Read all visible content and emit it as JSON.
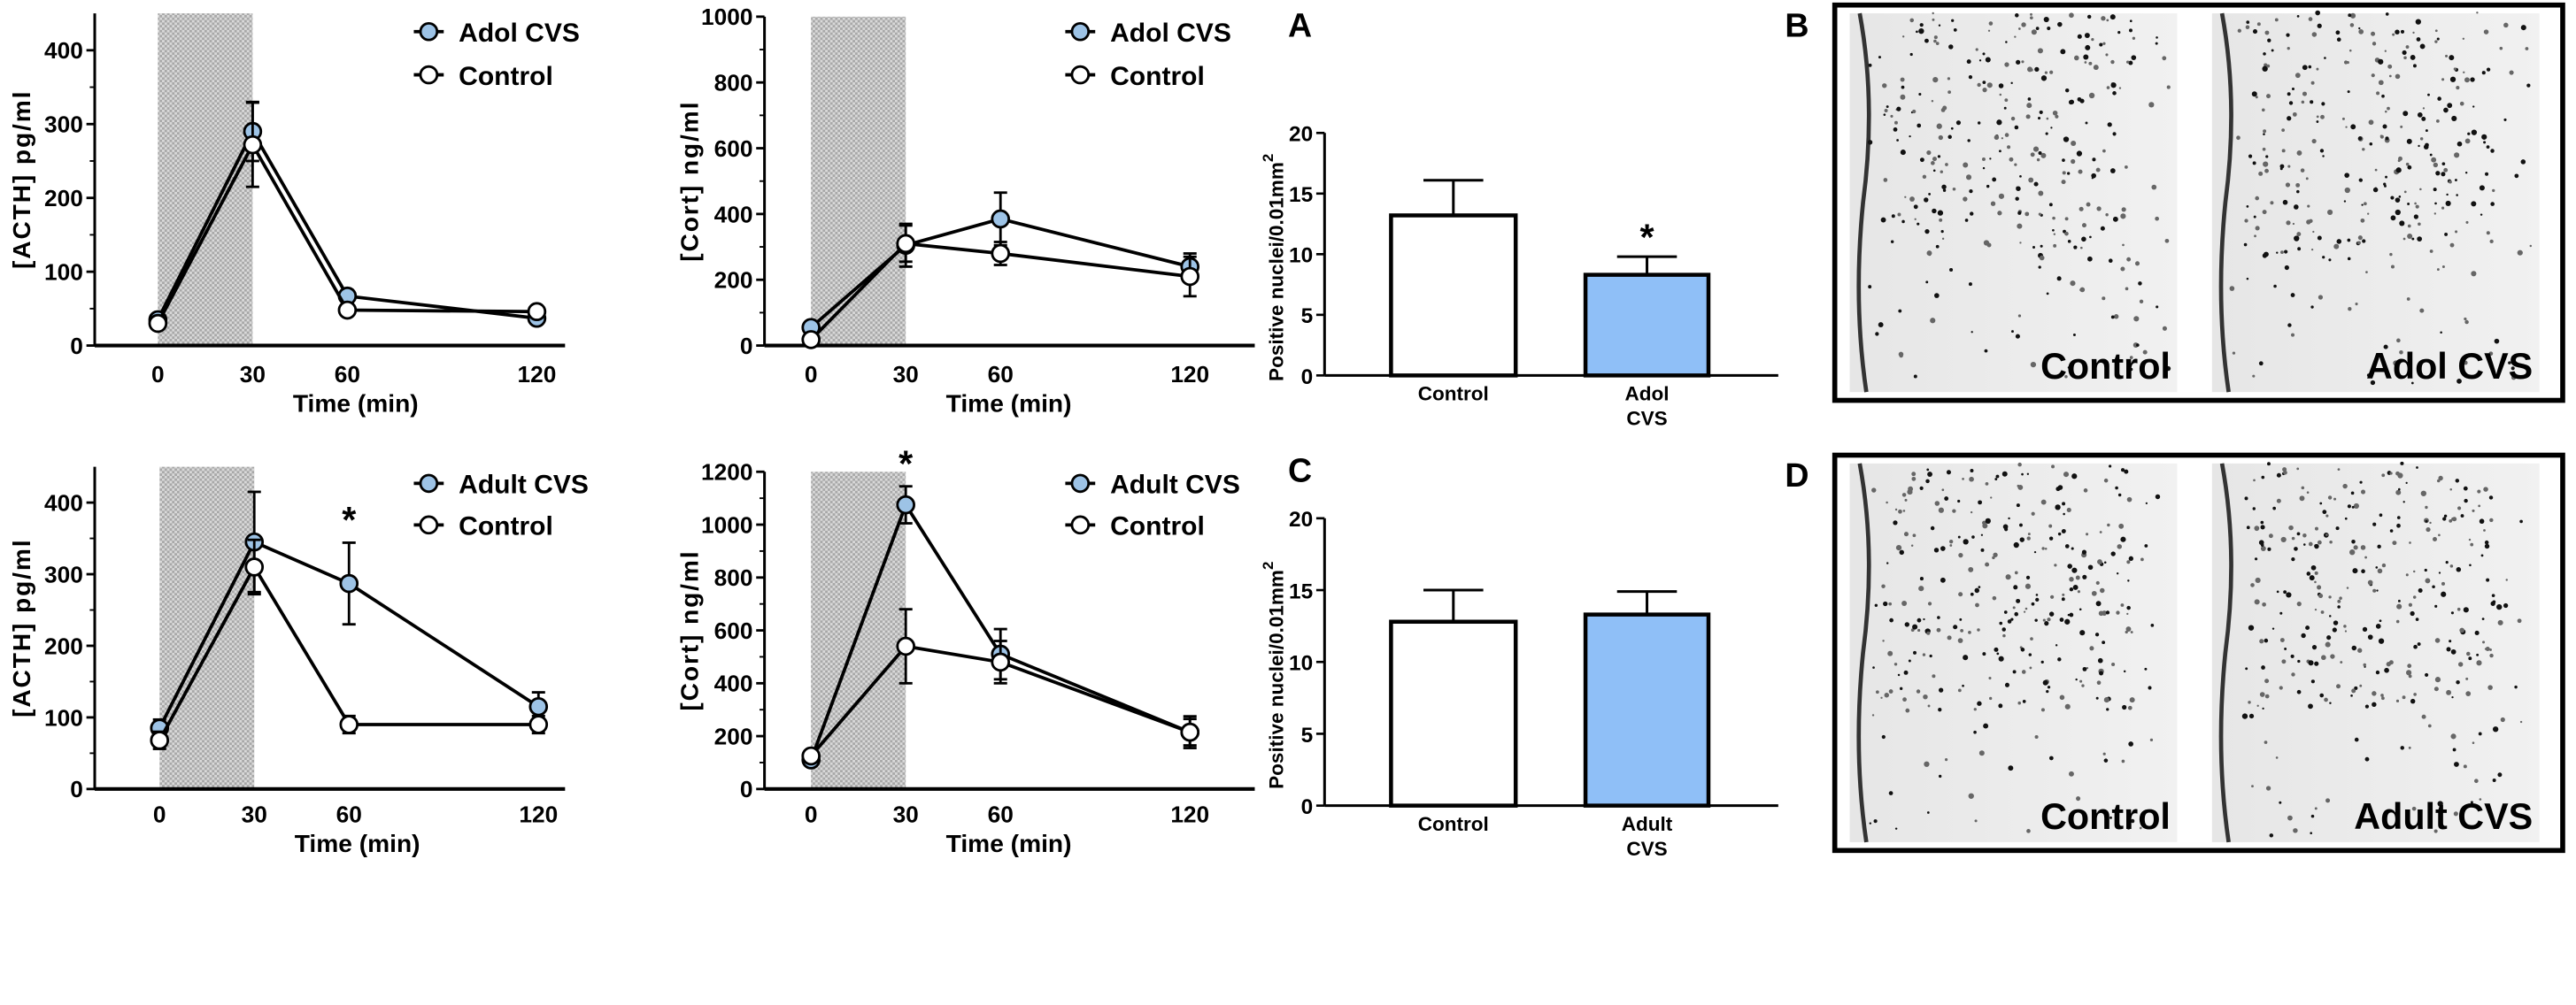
{
  "colors": {
    "cvs_marker": "#9dc3e6",
    "cvs_bar": "#8fbff7",
    "control": "#ffffff",
    "stress_shade": "#c4c4c4"
  },
  "chart_data": [
    {
      "type": "line",
      "id": "acth-adol",
      "xlabel": "Time (min)",
      "ylabel": "[ACTH] pg/ml",
      "ylim": [
        0,
        450
      ],
      "yticks": [
        0,
        100,
        200,
        300,
        400
      ],
      "x": [
        0,
        30,
        60,
        120
      ],
      "shaded_interval": [
        0,
        30
      ],
      "series": [
        {
          "name": "Adol CVS",
          "color": "#9dc3e6",
          "values": [
            35,
            290,
            67,
            37
          ],
          "err": [
            6,
            40,
            8,
            6
          ]
        },
        {
          "name": "Control",
          "color": "#ffffff",
          "values": [
            30,
            272,
            48,
            46
          ],
          "err": [
            5,
            57,
            6,
            6
          ]
        }
      ],
      "annotations": []
    },
    {
      "type": "line",
      "id": "cort-adol",
      "xlabel": "Time (min)",
      "ylabel": "[Cort] ng/ml",
      "ylim": [
        0,
        1000
      ],
      "yticks": [
        0,
        200,
        400,
        600,
        800,
        1000
      ],
      "x": [
        0,
        30,
        60,
        120
      ],
      "shaded_interval": [
        0,
        30
      ],
      "series": [
        {
          "name": "Adol CVS",
          "color": "#9dc3e6",
          "values": [
            55,
            305,
            385,
            240
          ],
          "err": [
            10,
            65,
            80,
            40
          ]
        },
        {
          "name": "Control",
          "color": "#ffffff",
          "values": [
            18,
            310,
            280,
            210
          ],
          "err": [
            5,
            55,
            35,
            60
          ]
        }
      ],
      "annotations": []
    },
    {
      "type": "line",
      "id": "acth-adult",
      "xlabel": "Time (min)",
      "ylabel": "[ACTH] pg/ml",
      "ylim": [
        0,
        450
      ],
      "yticks": [
        0,
        100,
        200,
        300,
        400
      ],
      "x": [
        0,
        30,
        60,
        120
      ],
      "shaded_interval": [
        0,
        30
      ],
      "series": [
        {
          "name": "Adult CVS",
          "color": "#9dc3e6",
          "values": [
            85,
            345,
            287,
            115
          ],
          "err": [
            12,
            70,
            57,
            20
          ]
        },
        {
          "name": "Control",
          "color": "#ffffff",
          "values": [
            68,
            310,
            90,
            90
          ],
          "err": [
            12,
            38,
            12,
            12
          ]
        }
      ],
      "annotations": [
        {
          "x": 60,
          "text": "*"
        }
      ]
    },
    {
      "type": "line",
      "id": "cort-adult",
      "xlabel": "Time (min)",
      "ylabel": "[Cort] ng/ml",
      "ylim": [
        0,
        1200
      ],
      "yticks": [
        0,
        200,
        400,
        600,
        800,
        1000,
        1200
      ],
      "x": [
        0,
        30,
        60,
        120
      ],
      "shaded_interval": [
        0,
        30
      ],
      "series": [
        {
          "name": "Adult CVS",
          "color": "#9dc3e6",
          "values": [
            110,
            1075,
            510,
            215
          ],
          "err": [
            15,
            70,
            95,
            60
          ]
        },
        {
          "name": "Control",
          "color": "#ffffff",
          "values": [
            125,
            540,
            480,
            215
          ],
          "err": [
            10,
            140,
            80,
            50
          ]
        }
      ],
      "annotations": [
        {
          "x": 30,
          "text": "*"
        }
      ]
    },
    {
      "type": "bar",
      "id": "bar-a",
      "panel": "A",
      "ylabel": "Positive nuclei/0.01mm",
      "ylabel_sup": "2",
      "ylim": [
        0,
        20
      ],
      "yticks": [
        0,
        5,
        10,
        15,
        20
      ],
      "categories": [
        [
          "Control"
        ],
        [
          "Adol",
          "CVS"
        ]
      ],
      "values": [
        13.2,
        8.3
      ],
      "err": [
        2.9,
        1.5
      ],
      "colors": [
        "#ffffff",
        "#8fbff7"
      ],
      "annotations": [
        {
          "category": 1,
          "text": "*"
        }
      ]
    },
    {
      "type": "bar",
      "id": "bar-c",
      "panel": "C",
      "ylabel": "Positive nuclei/0.01mm",
      "ylabel_sup": "2",
      "ylim": [
        0,
        20
      ],
      "yticks": [
        0,
        5,
        10,
        15,
        20
      ],
      "categories": [
        [
          "Control"
        ],
        [
          "Adult",
          "CVS"
        ]
      ],
      "values": [
        12.8,
        13.3
      ],
      "err": [
        2.2,
        1.6
      ],
      "colors": [
        "#ffffff",
        "#8fbff7"
      ],
      "annotations": []
    }
  ],
  "micrographs": [
    {
      "panel": "B",
      "labels": [
        "Control",
        "Adol CVS"
      ]
    },
    {
      "panel": "D",
      "labels": [
        "Control",
        "Adult CVS"
      ]
    }
  ]
}
